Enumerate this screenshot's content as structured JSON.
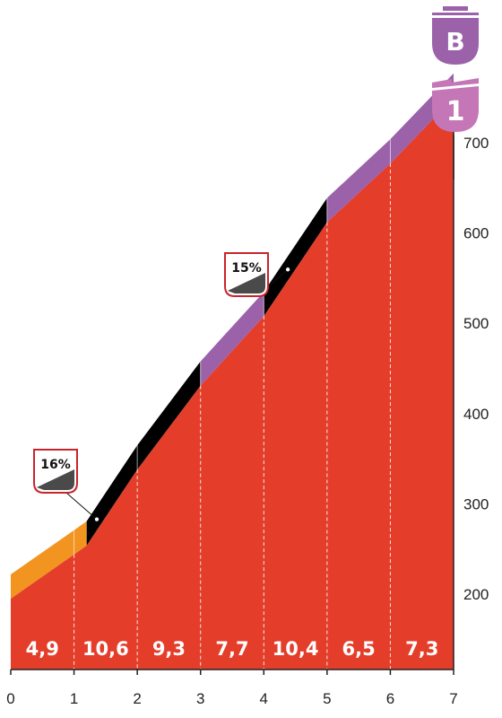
{
  "chart_data": {
    "type": "area",
    "title": "",
    "xlabel": "",
    "ylabel": "",
    "xlim": [
      0,
      7
    ],
    "ylim": [
      150,
      750
    ],
    "x_ticks": [
      "0",
      "1",
      "2",
      "3",
      "4",
      "5",
      "6",
      "7"
    ],
    "y_ticks": [
      "200",
      "300",
      "400",
      "500",
      "600",
      "700"
    ],
    "profile": [
      {
        "x": 0,
        "y": 195
      },
      {
        "x": 1,
        "y": 244
      },
      {
        "x": 1.2,
        "y": 254
      },
      {
        "x": 2,
        "y": 338
      },
      {
        "x": 3,
        "y": 431
      },
      {
        "x": 4,
        "y": 508
      },
      {
        "x": 5,
        "y": 612
      },
      {
        "x": 6,
        "y": 677
      },
      {
        "x": 7,
        "y": 750
      }
    ],
    "segment_gradients": [
      "4,9",
      "10,6",
      "9,3",
      "7,7",
      "10,4",
      "6,5",
      "7,3"
    ],
    "band_segments": [
      {
        "x0": 0,
        "x1": 1.2,
        "color": "#f29420"
      },
      {
        "x0": 1.2,
        "x1": 3,
        "color": "#000000"
      },
      {
        "x0": 3,
        "x1": 4,
        "color": "#9b62aa"
      },
      {
        "x0": 4,
        "x1": 5,
        "color": "#000000"
      },
      {
        "x0": 5,
        "x1": 7,
        "color": "#9b62aa"
      }
    ],
    "callouts": [
      {
        "label": "16%",
        "x": 1.36
      },
      {
        "label": "15%",
        "x": 4.38
      }
    ],
    "badges": [
      {
        "label": "B",
        "color": "#9b62aa"
      },
      {
        "label": "1",
        "color": "#c476b6"
      }
    ],
    "colors": {
      "profile_fill": "#e43e2b",
      "axis": "#222222",
      "callout_border": "#c8242b",
      "callout_wedge": "#4a4a4a"
    }
  }
}
